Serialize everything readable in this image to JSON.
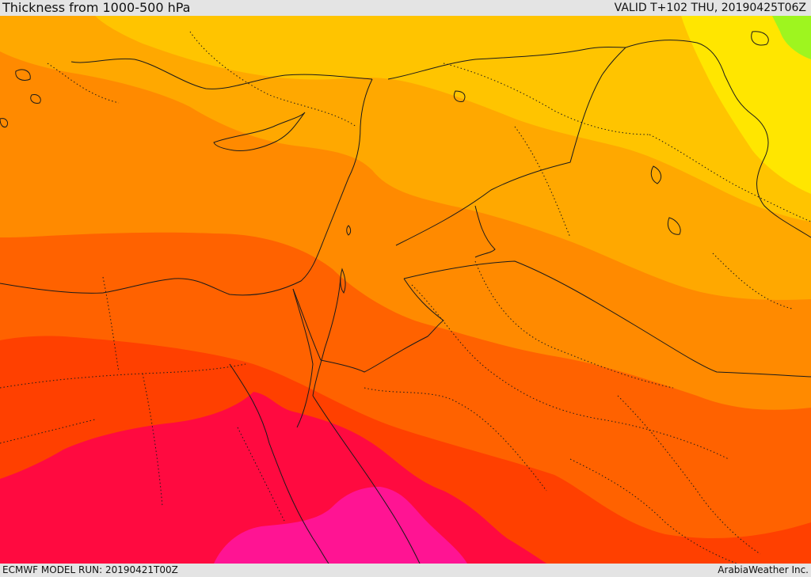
{
  "header": {
    "title": "Thickness from 1000-500 hPa",
    "valid": "VALID T+102 THU, 20190425T06Z"
  },
  "footer": {
    "model_run": "ECMWF MODEL RUN: 20190421T00Z",
    "credit": "ArabiaWeather Inc."
  },
  "map": {
    "field": "thickness-1000-500",
    "colors": {
      "green": "#9ef51f",
      "yellow": "#ffe600",
      "gold": "#ffc400",
      "amber": "#ffa800",
      "orange": "#ff8a00",
      "dark_orange": "#ff6200",
      "red_orange": "#ff4000",
      "crimson": "#ff0a40",
      "magenta": "#ff1493",
      "border": "#1a1a1a"
    }
  }
}
